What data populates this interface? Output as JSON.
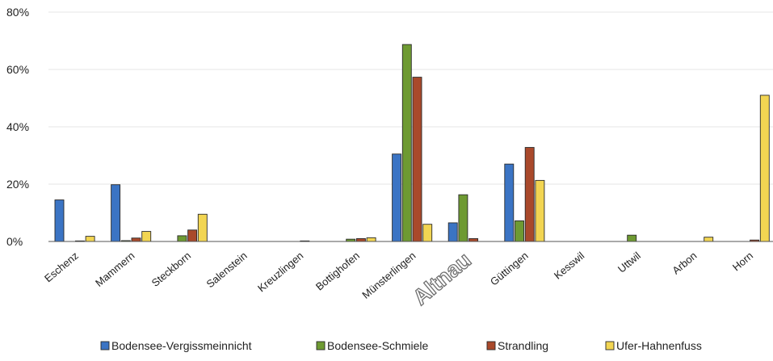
{
  "chart_data": {
    "type": "bar",
    "categories": [
      "Eschenz",
      "Mammern",
      "Steckborn",
      "Salenstein",
      "Kreuzlingen",
      "Bottighofen",
      "Münsterlingen",
      "Altnau",
      "Güttingen",
      "Kesswil",
      "Uttwil",
      "Arbon",
      "Horn"
    ],
    "emphasized_category": "Altnau",
    "series": [
      {
        "name": "Bodensee-Vergissmeinnicht",
        "color": "#3b74c4",
        "values": [
          14.5,
          19.8,
          0,
          0,
          0,
          0,
          30.5,
          6.5,
          27,
          0,
          0,
          0,
          0
        ]
      },
      {
        "name": "Bodensee-Schmiele",
        "color": "#6e9a32",
        "values": [
          0,
          0.3,
          2,
          0,
          0,
          0.8,
          68.7,
          16.3,
          7.2,
          0,
          2.2,
          0,
          0
        ]
      },
      {
        "name": "Strandling",
        "color": "#a9492b",
        "values": [
          0.2,
          1.2,
          4,
          0,
          0.2,
          1,
          57.3,
          1,
          32.8,
          0,
          0,
          0,
          0.5
        ]
      },
      {
        "name": "Ufer-Hahnenfuss",
        "color": "#f2d552",
        "values": [
          1.8,
          3.5,
          9.5,
          0,
          0,
          1.3,
          6,
          0,
          21.3,
          0,
          0,
          1.5,
          51
        ]
      }
    ],
    "yticks": [
      "0%",
      "20%",
      "40%",
      "60%",
      "80%"
    ],
    "ylim": [
      0,
      80
    ],
    "xlabel": "",
    "ylabel": "",
    "title": "",
    "grid": true,
    "legend_position": "bottom"
  }
}
